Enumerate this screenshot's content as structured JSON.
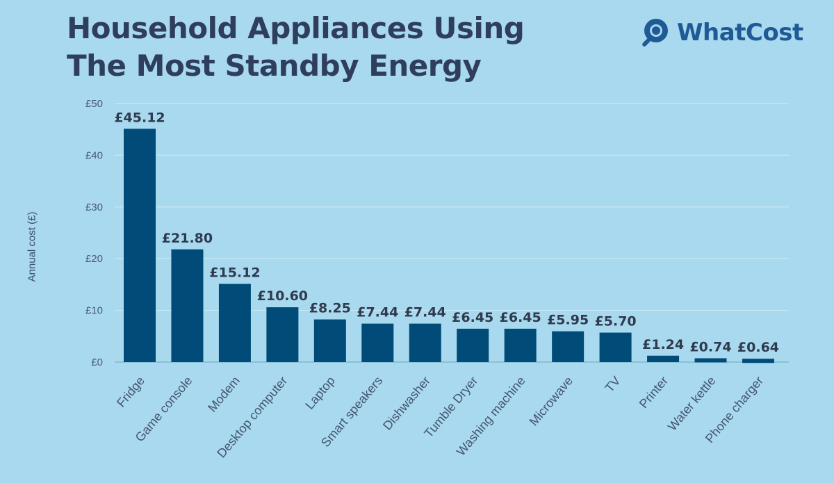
{
  "header": {
    "title_line1": "Household Appliances Using",
    "title_line2": "The Most Standby Energy"
  },
  "brand": {
    "name": "WhatCost",
    "icon": "magnifier-icon",
    "color": "#1f5a96"
  },
  "colors": {
    "background": "#a8d9ee",
    "bar": "#004b78",
    "grid": "#c4e6f4"
  },
  "chart_data": {
    "type": "bar",
    "title": "Household Appliances Using The Most Standby Energy",
    "xlabel": "",
    "ylabel": "Annual cost (£)",
    "ylim": [
      0,
      50
    ],
    "yticks": [
      0,
      10,
      20,
      30,
      40,
      50
    ],
    "ytick_labels": [
      "£0",
      "£10",
      "£20",
      "£30",
      "£40",
      "£50"
    ],
    "grid": true,
    "categories": [
      "Fridge",
      "Game console",
      "Modem",
      "Desktop computer",
      "Laptop",
      "Smart speakers",
      "Dishwasher",
      "Tumble Dryer",
      "Washing machine",
      "Microwave",
      "TV",
      "Printer",
      "Water kettle",
      "Phone charger"
    ],
    "values": [
      45.12,
      21.8,
      15.12,
      10.6,
      8.25,
      7.44,
      7.44,
      6.45,
      6.45,
      5.95,
      5.7,
      1.24,
      0.74,
      0.64
    ],
    "value_labels": [
      "£45.12",
      "£21.80",
      "£15.12",
      "£10.60",
      "£8.25",
      "£7.44",
      "£7.44",
      "£6.45",
      "£6.45",
      "£5.95",
      "£5.70",
      "£1.24",
      "£0.74",
      "£0.64"
    ]
  }
}
